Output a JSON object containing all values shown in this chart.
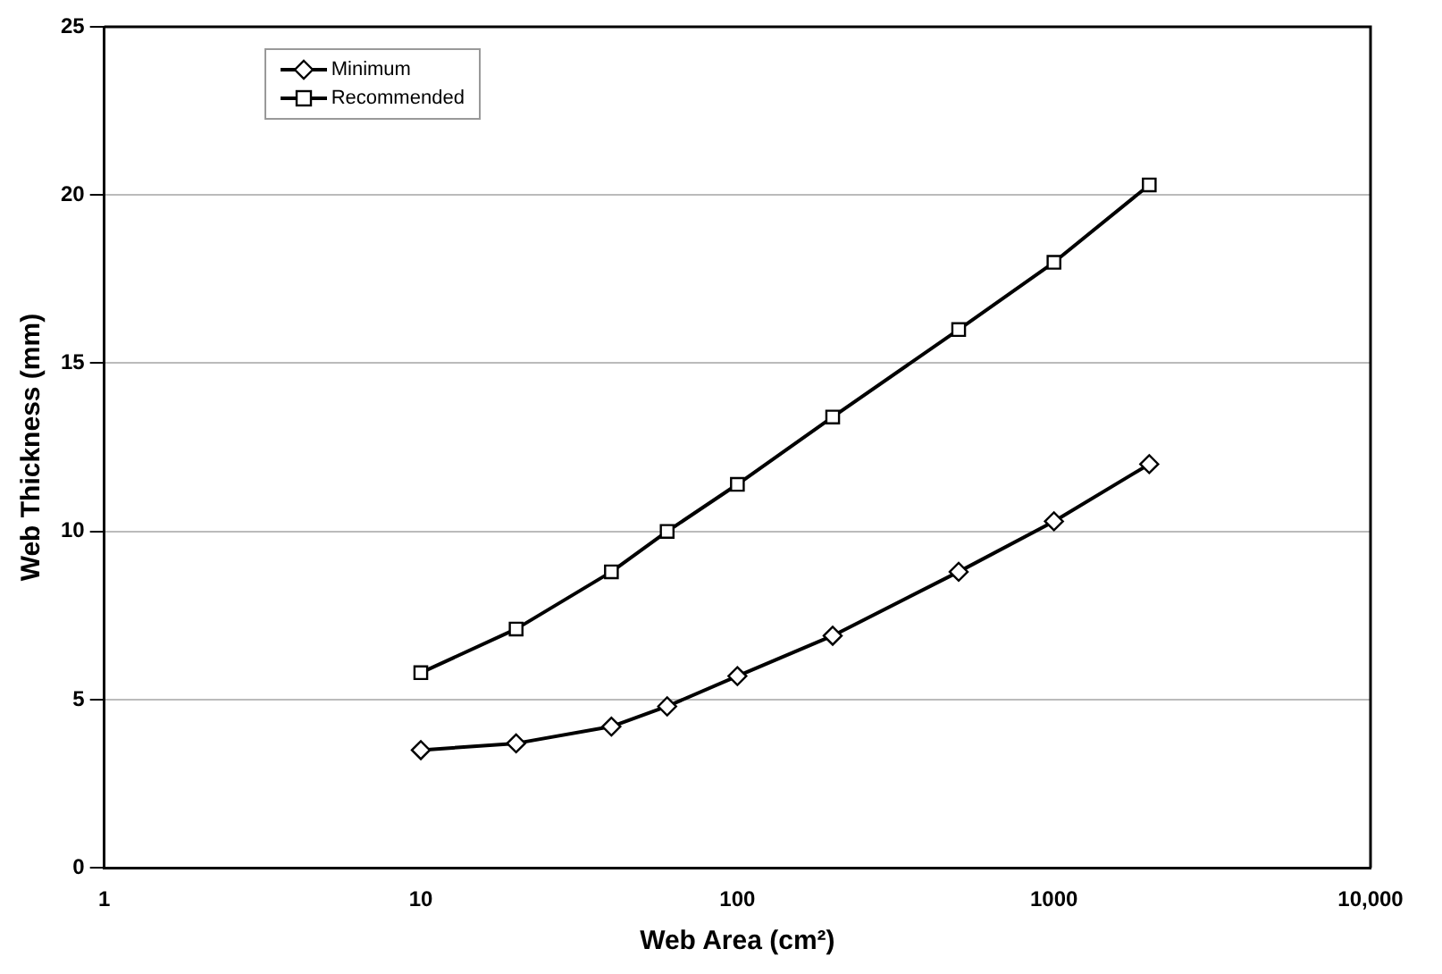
{
  "chart_data": {
    "type": "line",
    "xlabel": "Web Area (cm²)",
    "ylabel": "Web Thickness (mm)",
    "log": "x",
    "xlim": [
      1,
      10000
    ],
    "xticks": [
      1,
      10,
      100,
      1000,
      {
        "value": 10000,
        "label": "10,000"
      }
    ],
    "ylim": [
      0,
      25
    ],
    "yticks": [
      0,
      5,
      10,
      15,
      20,
      25
    ],
    "grid": "y",
    "legend": "top left",
    "x": [
      10,
      20,
      40,
      60,
      100,
      200,
      500,
      1000,
      2000
    ],
    "series": [
      {
        "name": "Minimum",
        "color": "#000000",
        "marker": "diamond",
        "values": [
          3.5,
          3.7,
          4.2,
          4.8,
          5.7,
          6.9,
          8.8,
          10.3,
          12.0
        ]
      },
      {
        "name": "Recommended",
        "color": "#000000",
        "marker": "square",
        "values": [
          5.8,
          7.1,
          8.8,
          10.0,
          11.4,
          13.4,
          16.0,
          18.0,
          20.3
        ]
      }
    ]
  }
}
